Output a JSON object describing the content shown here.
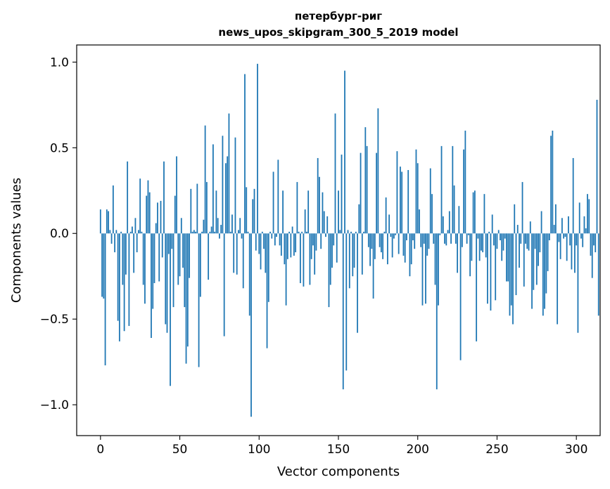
{
  "chart_data": {
    "type": "bar",
    "title_line1": "петербург-риг",
    "title_line2": "news_upos_skipgram_300_5_2019 model",
    "xlabel": "Vector components",
    "ylabel": "Components values",
    "xlim": [
      -15,
      315
    ],
    "ylim": [
      -1.18,
      1.1
    ],
    "x_ticks": [
      0,
      50,
      100,
      150,
      200,
      250,
      300
    ],
    "x_tick_labels": [
      "0",
      "50",
      "100",
      "150",
      "200",
      "250",
      "300"
    ],
    "y_ticks": [
      -1.0,
      -0.5,
      0.0,
      0.5,
      1.0
    ],
    "y_tick_labels": [
      "−1.0",
      "−0.5",
      "0.0",
      "0.5",
      "1.0"
    ],
    "bar_color": "#1f77b4",
    "grid": false,
    "values": [
      0.14,
      -0.37,
      -0.38,
      -0.77,
      0.14,
      0.13,
      0.02,
      -0.06,
      0.28,
      -0.11,
      0.02,
      -0.51,
      -0.63,
      0.01,
      -0.3,
      -0.57,
      -0.24,
      0.42,
      -0.54,
      0.01,
      0.04,
      -0.23,
      0.09,
      -0.11,
      0.02,
      0.32,
      0.01,
      -0.3,
      -0.41,
      0.22,
      0.31,
      0.24,
      -0.61,
      -0.44,
      -0.29,
      0.06,
      0.18,
      -0.28,
      0.19,
      -0.14,
      0.42,
      -0.53,
      -0.58,
      -0.12,
      -0.89,
      -0.09,
      -0.43,
      0.22,
      0.45,
      -0.3,
      -0.25,
      0.09,
      -0.2,
      -0.43,
      -0.76,
      -0.66,
      -0.26,
      0.26,
      0.01,
      0.02,
      0.01,
      0.29,
      -0.78,
      -0.37,
      0.01,
      0.08,
      0.63,
      0.3,
      -0.27,
      0.01,
      0.04,
      0.52,
      0.01,
      0.25,
      0.09,
      -0.03,
      0.05,
      0.57,
      -0.6,
      0.41,
      0.45,
      0.7,
      0.01,
      0.11,
      -0.23,
      0.56,
      -0.24,
      0.02,
      0.09,
      -0.03,
      -0.32,
      0.93,
      0.27,
      0.01,
      -0.48,
      -1.07,
      0.2,
      0.26,
      -0.1,
      0.99,
      -0.12,
      -0.21,
      0.01,
      -0.09,
      -0.23,
      -0.67,
      -0.4,
      0.01,
      -0.03,
      0.36,
      -0.07,
      -0.02,
      0.43,
      -0.07,
      -0.13,
      0.25,
      -0.18,
      -0.42,
      -0.15,
      0.01,
      -0.14,
      0.04,
      -0.13,
      -0.11,
      0.3,
      0.01,
      -0.29,
      0.01,
      -0.31,
      0.14,
      0.01,
      0.25,
      -0.3,
      -0.15,
      -0.07,
      -0.24,
      -0.1,
      0.44,
      0.33,
      -0.09,
      0.24,
      0.13,
      -0.02,
      0.1,
      -0.43,
      -0.3,
      -0.2,
      -0.07,
      0.7,
      -0.17,
      0.25,
      0.02,
      0.46,
      -0.91,
      0.95,
      -0.8,
      0.02,
      -0.32,
      0.01,
      -0.25,
      -0.2,
      0.01,
      -0.58,
      0.17,
      0.47,
      -0.24,
      0.01,
      0.62,
      0.51,
      -0.08,
      -0.19,
      -0.09,
      -0.38,
      -0.15,
      0.47,
      0.73,
      -0.08,
      -0.11,
      -0.15,
      0.01,
      0.21,
      -0.18,
      0.11,
      -0.02,
      -0.14,
      -0.03,
      -0.01,
      0.48,
      -0.12,
      0.39,
      0.36,
      -0.13,
      -0.17,
      -0.04,
      0.37,
      -0.25,
      -0.18,
      -0.04,
      -0.09,
      0.49,
      0.41,
      0.14,
      -0.08,
      -0.42,
      -0.06,
      -0.41,
      -0.13,
      -0.09,
      0.38,
      0.23,
      -0.06,
      -0.3,
      -0.91,
      -0.42,
      -0.01,
      0.51,
      0.1,
      -0.06,
      -0.07,
      0.02,
      0.13,
      -0.06,
      0.51,
      0.28,
      -0.06,
      -0.23,
      0.16,
      -0.74,
      -0.08,
      0.49,
      0.6,
      -0.06,
      -0.01,
      -0.25,
      -0.16,
      0.24,
      0.25,
      -0.63,
      -0.03,
      -0.16,
      -0.1,
      -0.11,
      0.23,
      -0.14,
      -0.41,
      0.01,
      -0.45,
      0.11,
      -0.07,
      -0.39,
      -0.09,
      0.02,
      -0.04,
      -0.16,
      -0.1,
      -0.03,
      -0.28,
      -0.28,
      -0.48,
      -0.42,
      -0.53,
      0.17,
      -0.36,
      0.05,
      -0.2,
      -0.06,
      0.3,
      -0.31,
      -0.06,
      -0.09,
      -0.1,
      0.07,
      -0.44,
      -0.33,
      -0.09,
      -0.3,
      -0.19,
      -0.11,
      0.13,
      -0.48,
      -0.44,
      -0.35,
      -0.22,
      -0.04,
      0.57,
      0.6,
      0.05,
      0.17,
      -0.53,
      -0.05,
      -0.15,
      0.09,
      -0.03,
      -0.02,
      -0.16,
      0.1,
      -0.07,
      -0.21,
      0.44,
      -0.23,
      -0.07,
      -0.58,
      0.18,
      -0.03,
      -0.08,
      0.1,
      0.03,
      0.23,
      0.2,
      -0.13,
      -0.26,
      -0.07,
      -0.11,
      0.78,
      -0.48
    ]
  }
}
